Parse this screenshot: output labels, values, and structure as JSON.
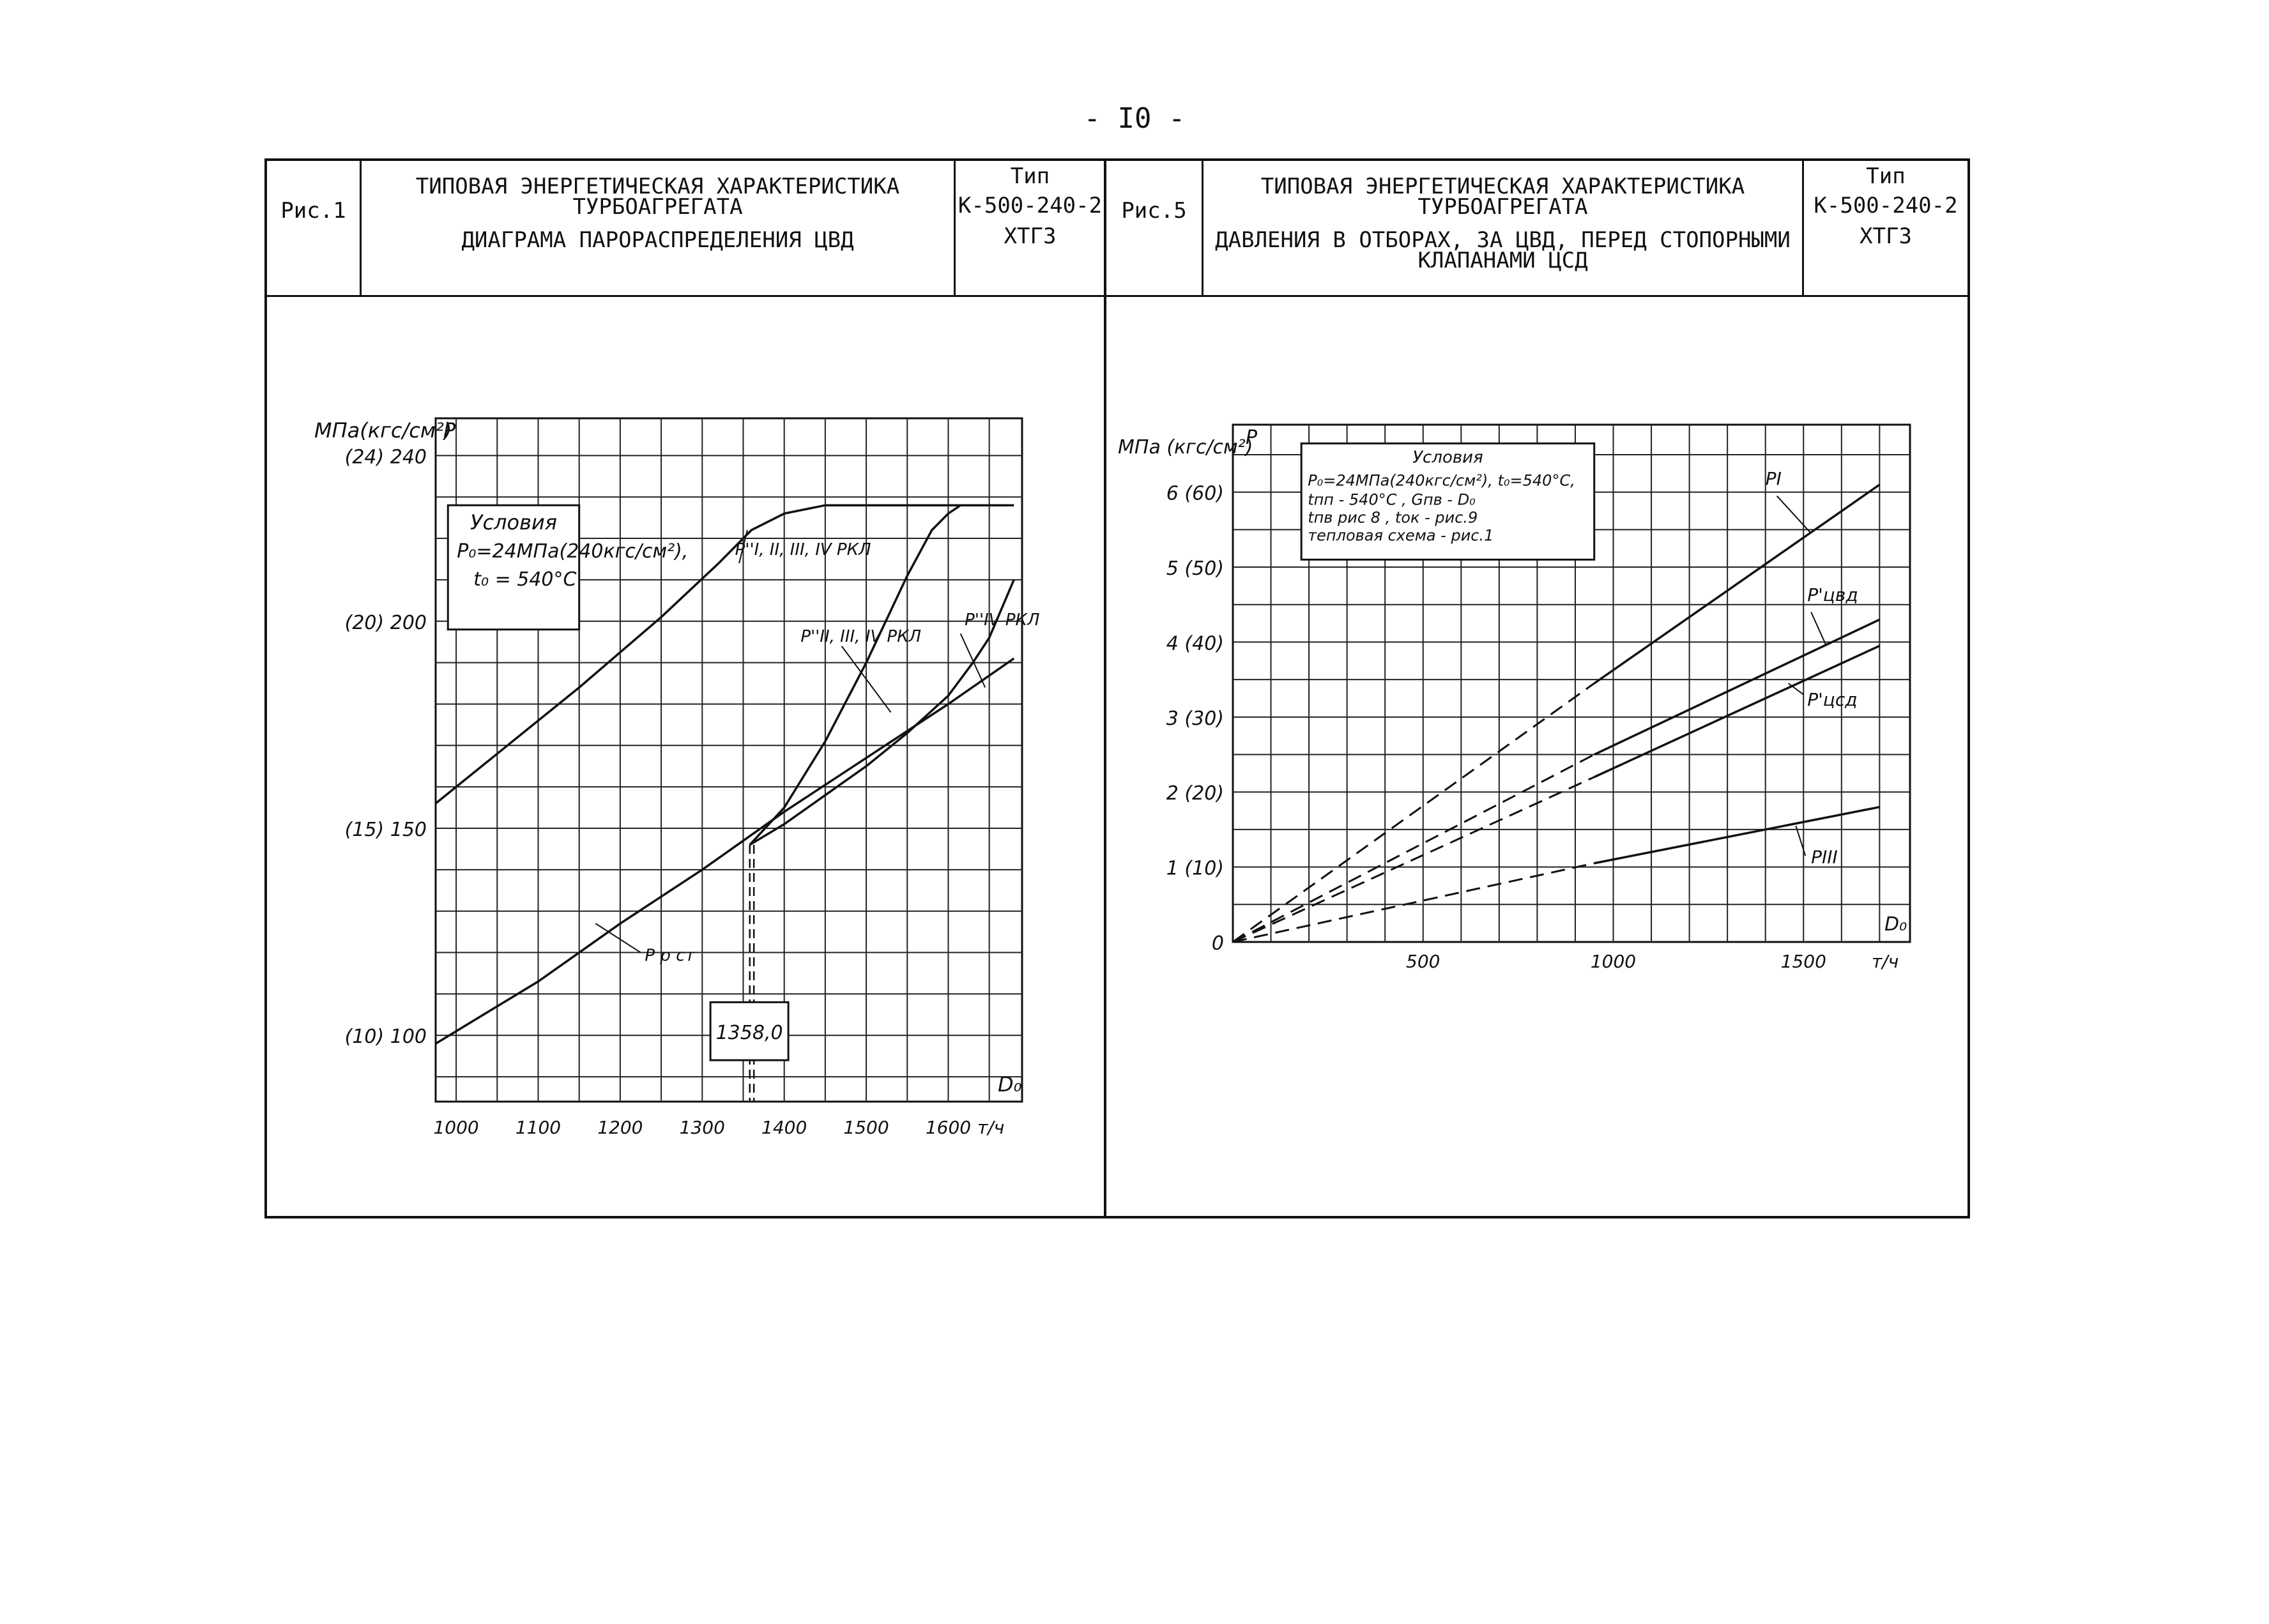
{
  "page_number": "- I0 -",
  "header_left": {
    "fig": "Рис.1",
    "title1": "ТИПОВАЯ ЭНЕРГЕТИЧЕСКАЯ ХАРАКТЕРИСТИКА",
    "title2": "ТУРБОАГРЕГАТА",
    "subtitle": "ДИАГРАМА ПАРОРАСПРЕДЕЛЕНИЯ ЦВД",
    "type_label": "Тип",
    "type_value": "К-500-240-2",
    "maker": "ХТГЗ"
  },
  "header_right": {
    "fig": "Рис.5",
    "title1": "ТИПОВАЯ ЭНЕРГЕТИЧЕСКАЯ ХАРАКТЕРИСТИКА",
    "title2": "ТУРБОАГРЕГАТА",
    "subtitle1": "ДАВЛЕНИЯ В ОТБОРАХ, ЗА ЦВД, ПЕРЕД СТОПОРНЫМИ",
    "subtitle2": "КЛАПАНАМИ ЦСД",
    "type_label": "Тип",
    "type_value": "К-500-240-2",
    "maker": "ХТГЗ"
  },
  "chart_data": [
    {
      "type": "line",
      "ylabel_units": "МПа(кгс/см²)",
      "ylabel_symbol": "P",
      "xlabel_symbol": "D₀",
      "xlabel_units": "т/ч",
      "xlim": [
        975,
        1690
      ],
      "ylim": [
        84,
        249
      ],
      "x_ticks": [
        1000,
        1100,
        1200,
        1300,
        1400,
        1500,
        1600
      ],
      "y_ticks": [
        {
          "value": 240,
          "label": "(24) 240"
        },
        {
          "value": 200,
          "label": "(20) 200"
        },
        {
          "value": 150,
          "label": "(15) 150"
        },
        {
          "value": 100,
          "label": "(10) 100"
        }
      ],
      "conditions": {
        "title": "Условия",
        "line1": "P₀=24МПа(240кгс/см²),",
        "line2": "t₀ = 540°С"
      },
      "annotation": "1358,0",
      "annotation_x": 1358,
      "series": [
        {
          "name": "P''I, II, III, IV РКЛ",
          "style": "solid",
          "x": [
            975,
            1050,
            1150,
            1250,
            1320,
            1360,
            1400,
            1450,
            1500,
            1550,
            1600,
            1650,
            1680
          ],
          "y": [
            156,
            168,
            184,
            201,
            214,
            222,
            226,
            228,
            228,
            228,
            228,
            228,
            228
          ]
        },
        {
          "name": "P''II, III, IV РКЛ",
          "style": "solid",
          "x": [
            1358,
            1400,
            1450,
            1500,
            1550,
            1580,
            1600,
            1615,
            1625,
            1640,
            1680
          ],
          "y": [
            146,
            155,
            171,
            190,
            211,
            222,
            226,
            228,
            228,
            228,
            228
          ]
        },
        {
          "name": "P''IV РКЛ",
          "style": "solid",
          "x": [
            1358,
            1400,
            1450,
            1500,
            1550,
            1600,
            1630,
            1650,
            1665,
            1680
          ],
          "y": [
            146,
            151,
            158,
            165,
            173,
            182,
            190,
            196,
            203,
            210
          ]
        },
        {
          "name": "P р ст",
          "style": "solid",
          "x": [
            975,
            1100,
            1200,
            1300,
            1400,
            1500,
            1600,
            1680
          ],
          "y": [
            98,
            113,
            127,
            140,
            154,
            167,
            180,
            191
          ]
        }
      ]
    },
    {
      "type": "line",
      "ylabel_units": "МПа (кгс/см²)",
      "ylabel_symbol": "P",
      "xlabel_symbol": "D₀",
      "xlabel_units": "т/ч",
      "xlim": [
        0,
        1780
      ],
      "ylim": [
        0,
        6.9
      ],
      "x_ticks": [
        500,
        1000,
        1500
      ],
      "y_ticks": [
        {
          "value": 0,
          "label": "0"
        },
        {
          "value": 1,
          "label": "1 (10)"
        },
        {
          "value": 2,
          "label": "2 (20)"
        },
        {
          "value": 3,
          "label": "3 (30)"
        },
        {
          "value": 4,
          "label": "4 (40)"
        },
        {
          "value": 5,
          "label": "5 (50)"
        },
        {
          "value": 6,
          "label": "6 (60)"
        }
      ],
      "conditions": {
        "title": "Условия",
        "line1": "P₀=24МПа(240кгс/см²), t₀=540°С,",
        "line2": "tпп - 540°С ,  Gпв - D₀",
        "line3": "tпв рис 8 ,   tок - рис.9",
        "line4": "тепловая схема - рис.1"
      },
      "series": [
        {
          "name": "PI",
          "dashed_to": 950,
          "x": [
            0,
            950,
            1700
          ],
          "y": [
            0,
            3.45,
            6.1
          ]
        },
        {
          "name": "P'цвд",
          "dashed_to": 950,
          "x": [
            0,
            950,
            1700
          ],
          "y": [
            0,
            2.5,
            4.3
          ]
        },
        {
          "name": "P'цсд",
          "dashed_to": 950,
          "x": [
            0,
            950,
            1700
          ],
          "y": [
            0,
            2.2,
            3.95
          ]
        },
        {
          "name": "PIII",
          "dashed_to": 950,
          "x": [
            0,
            950,
            1700
          ],
          "y": [
            0,
            1.05,
            1.8
          ]
        }
      ]
    }
  ]
}
